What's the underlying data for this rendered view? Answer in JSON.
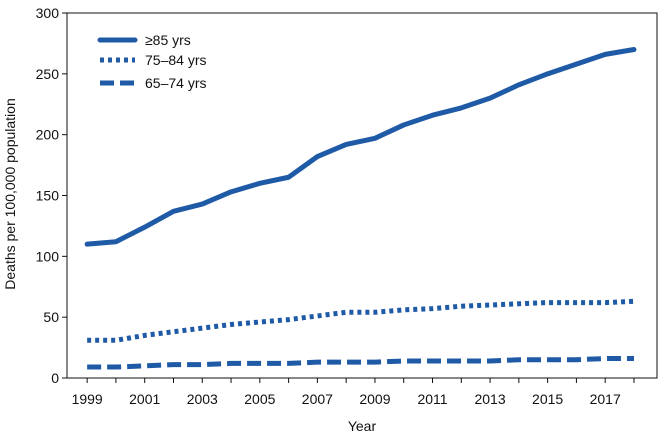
{
  "chart_data": {
    "type": "line",
    "title": "",
    "xlabel": "Year",
    "ylabel": "Deaths per 100,000 population",
    "x": [
      1999,
      2000,
      2001,
      2002,
      2003,
      2004,
      2005,
      2006,
      2007,
      2008,
      2009,
      2010,
      2011,
      2012,
      2013,
      2014,
      2015,
      2016,
      2017,
      2018
    ],
    "x_tick_labels": [
      "1999",
      "2001",
      "2003",
      "2005",
      "2007",
      "2009",
      "2011",
      "2013",
      "2015",
      "2017"
    ],
    "y_ticks": [
      0,
      50,
      100,
      150,
      200,
      250,
      300
    ],
    "y_tick_labels": [
      "0",
      "50",
      "100",
      "150",
      "200",
      "250",
      "300"
    ],
    "ylim": [
      0,
      300
    ],
    "xlim": [
      1998.3,
      2018.8
    ],
    "grid": false,
    "legend_placement": "top-left",
    "series": [
      {
        "name": "≥85 yrs",
        "style": "solid",
        "color": "#1f5aa6",
        "values": [
          110,
          112,
          124,
          137,
          143,
          153,
          160,
          165,
          182,
          192,
          197,
          208,
          216,
          222,
          230,
          241,
          250,
          258,
          266,
          270
        ]
      },
      {
        "name": "75–84 yrs",
        "style": "dotted",
        "color": "#1f5aa6",
        "values": [
          31,
          31,
          35,
          38,
          41,
          44,
          46,
          48,
          51,
          54,
          54,
          56,
          57,
          59,
          60,
          61,
          62,
          62,
          62,
          63
        ]
      },
      {
        "name": "65–74 yrs",
        "style": "dashed",
        "color": "#1f5aa6",
        "values": [
          9,
          9,
          10,
          11,
          11,
          12,
          12,
          12,
          13,
          13,
          13,
          14,
          14,
          14,
          14,
          15,
          15,
          15,
          16,
          16
        ]
      }
    ]
  }
}
